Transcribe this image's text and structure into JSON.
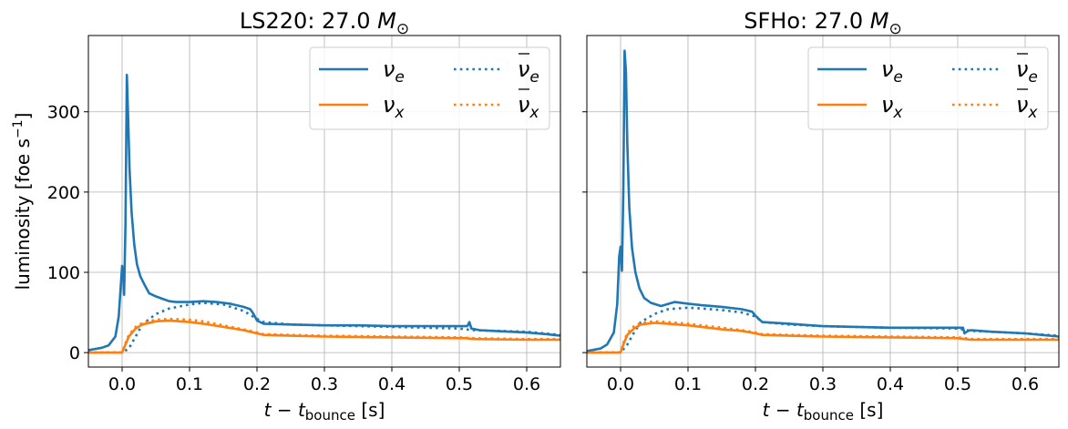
{
  "chart_data": [
    {
      "type": "line",
      "title": "LS220: 27.0 M⊙",
      "title_text": "LS220: 27.0",
      "title_symbol": "M",
      "title_subscript": "⊙",
      "xlabel_main": "t − t",
      "xlabel_sub": "bounce",
      "xlabel_unit": "[s]",
      "ylabel": "luminosity [foe s⁻¹]",
      "ylabel_text": "luminosity [foe s",
      "ylabel_sup": "−1",
      "ylabel_close": "]",
      "xlim": [
        -0.05,
        0.65
      ],
      "ylim": [
        -18,
        395
      ],
      "xticks": [
        0.0,
        0.1,
        0.2,
        0.3,
        0.4,
        0.5,
        0.6
      ],
      "xtick_labels": [
        "0.0",
        "0.1",
        "0.2",
        "0.3",
        "0.4",
        "0.5",
        "0.6"
      ],
      "yticks": [
        0,
        100,
        200,
        300
      ],
      "ytick_labels": [
        "0",
        "100",
        "200",
        "300"
      ],
      "grid": true,
      "legend_position": "top-right",
      "series": [
        {
          "name": "νe",
          "base": "ν",
          "sub": "e",
          "bar": false,
          "color": "#1f77b4",
          "dash": "solid",
          "points": [
            [
              -0.05,
              3
            ],
            [
              -0.03,
              6
            ],
            [
              -0.02,
              9
            ],
            [
              -0.01,
              20
            ],
            [
              -0.005,
              45
            ],
            [
              0.0,
              108
            ],
            [
              0.002,
              95
            ],
            [
              0.003,
              72
            ],
            [
              0.005,
              160
            ],
            [
              0.007,
              346
            ],
            [
              0.009,
              290
            ],
            [
              0.011,
              230
            ],
            [
              0.014,
              175
            ],
            [
              0.018,
              135
            ],
            [
              0.022,
              110
            ],
            [
              0.027,
              95
            ],
            [
              0.033,
              85
            ],
            [
              0.04,
              74
            ],
            [
              0.05,
              70
            ],
            [
              0.06,
              67
            ],
            [
              0.07,
              64
            ],
            [
              0.08,
              63
            ],
            [
              0.1,
              63
            ],
            [
              0.12,
              64
            ],
            [
              0.14,
              63
            ],
            [
              0.16,
              61
            ],
            [
              0.18,
              57
            ],
            [
              0.19,
              54
            ],
            [
              0.195,
              48
            ],
            [
              0.2,
              40
            ],
            [
              0.21,
              36
            ],
            [
              0.25,
              35
            ],
            [
              0.3,
              34
            ],
            [
              0.35,
              34
            ],
            [
              0.4,
              33
            ],
            [
              0.45,
              33
            ],
            [
              0.5,
              33
            ],
            [
              0.512,
              33
            ],
            [
              0.515,
              38
            ],
            [
              0.518,
              30
            ],
            [
              0.53,
              28
            ],
            [
              0.55,
              27
            ],
            [
              0.6,
              25
            ],
            [
              0.63,
              23
            ],
            [
              0.65,
              21
            ]
          ]
        },
        {
          "name": "νx",
          "base": "ν",
          "sub": "x",
          "bar": false,
          "color": "#ff7f0e",
          "dash": "solid",
          "points": [
            [
              -0.05,
              0
            ],
            [
              0.0,
              0
            ],
            [
              0.005,
              10
            ],
            [
              0.01,
              20
            ],
            [
              0.02,
              30
            ],
            [
              0.03,
              35
            ],
            [
              0.05,
              39
            ],
            [
              0.07,
              40
            ],
            [
              0.1,
              38
            ],
            [
              0.12,
              36
            ],
            [
              0.15,
              32
            ],
            [
              0.18,
              28
            ],
            [
              0.2,
              24
            ],
            [
              0.21,
              22
            ],
            [
              0.25,
              21
            ],
            [
              0.3,
              20
            ],
            [
              0.4,
              19
            ],
            [
              0.5,
              18
            ],
            [
              0.51,
              18
            ],
            [
              0.52,
              17
            ],
            [
              0.6,
              16
            ],
            [
              0.65,
              16
            ]
          ]
        },
        {
          "name": "ν̅e",
          "base": "ν",
          "sub": "e",
          "bar": true,
          "color": "#1f77b4",
          "dash": "dotted",
          "points": [
            [
              -0.05,
              0
            ],
            [
              0.0,
              0
            ],
            [
              0.01,
              5
            ],
            [
              0.02,
              20
            ],
            [
              0.03,
              35
            ],
            [
              0.05,
              48
            ],
            [
              0.07,
              55
            ],
            [
              0.1,
              60
            ],
            [
              0.12,
              62
            ],
            [
              0.15,
              60
            ],
            [
              0.18,
              52
            ],
            [
              0.2,
              42
            ],
            [
              0.21,
              38
            ],
            [
              0.25,
              35
            ],
            [
              0.3,
              34
            ],
            [
              0.4,
              32
            ],
            [
              0.5,
              30
            ],
            [
              0.52,
              28
            ],
            [
              0.6,
              26
            ],
            [
              0.65,
              22
            ]
          ]
        },
        {
          "name": "ν̅x",
          "base": "ν",
          "sub": "x",
          "bar": true,
          "color": "#ff7f0e",
          "dash": "dotted",
          "points": [
            [
              -0.05,
              0
            ],
            [
              0.0,
              0
            ],
            [
              0.005,
              12
            ],
            [
              0.01,
              22
            ],
            [
              0.02,
              32
            ],
            [
              0.03,
              37
            ],
            [
              0.05,
              41
            ],
            [
              0.07,
              42
            ],
            [
              0.1,
              41
            ],
            [
              0.12,
              39
            ],
            [
              0.15,
              34
            ],
            [
              0.18,
              29
            ],
            [
              0.2,
              25
            ],
            [
              0.21,
              23
            ],
            [
              0.25,
              22
            ],
            [
              0.3,
              21
            ],
            [
              0.4,
              20
            ],
            [
              0.5,
              19
            ],
            [
              0.52,
              18
            ],
            [
              0.6,
              17
            ],
            [
              0.65,
              17
            ]
          ]
        }
      ]
    },
    {
      "type": "line",
      "title": "SFHo: 27.0 M⊙",
      "title_text": "SFHo: 27.0",
      "title_symbol": "M",
      "title_subscript": "⊙",
      "xlabel_main": "t − t",
      "xlabel_sub": "bounce",
      "xlabel_unit": "[s]",
      "xlim": [
        -0.05,
        0.65
      ],
      "ylim": [
        -18,
        395
      ],
      "xticks": [
        0.0,
        0.1,
        0.2,
        0.3,
        0.4,
        0.5,
        0.6
      ],
      "xtick_labels": [
        "0.0",
        "0.1",
        "0.2",
        "0.3",
        "0.4",
        "0.5",
        "0.6"
      ],
      "yticks": [
        0,
        100,
        200,
        300
      ],
      "grid": true,
      "legend_position": "top-right",
      "series": [
        {
          "name": "νe",
          "base": "ν",
          "sub": "e",
          "bar": false,
          "color": "#1f77b4",
          "dash": "solid",
          "points": [
            [
              -0.05,
              2
            ],
            [
              -0.03,
              5
            ],
            [
              -0.02,
              10
            ],
            [
              -0.01,
              25
            ],
            [
              -0.005,
              60
            ],
            [
              -0.002,
              120
            ],
            [
              0.0,
              132
            ],
            [
              0.002,
              102
            ],
            [
              0.004,
              200
            ],
            [
              0.006,
              376
            ],
            [
              0.008,
              350
            ],
            [
              0.01,
              260
            ],
            [
              0.013,
              180
            ],
            [
              0.017,
              130
            ],
            [
              0.022,
              100
            ],
            [
              0.028,
              80
            ],
            [
              0.035,
              68
            ],
            [
              0.045,
              62
            ],
            [
              0.06,
              58
            ],
            [
              0.08,
              63
            ],
            [
              0.1,
              61
            ],
            [
              0.12,
              59
            ],
            [
              0.15,
              57
            ],
            [
              0.18,
              54
            ],
            [
              0.195,
              51
            ],
            [
              0.2,
              46
            ],
            [
              0.21,
              38
            ],
            [
              0.25,
              36
            ],
            [
              0.3,
              33
            ],
            [
              0.35,
              32
            ],
            [
              0.4,
              31
            ],
            [
              0.45,
              31
            ],
            [
              0.5,
              31
            ],
            [
              0.508,
              31
            ],
            [
              0.51,
              24
            ],
            [
              0.515,
              27
            ],
            [
              0.52,
              28
            ],
            [
              0.55,
              26
            ],
            [
              0.6,
              24
            ],
            [
              0.65,
              20
            ]
          ]
        },
        {
          "name": "νx",
          "base": "ν",
          "sub": "x",
          "bar": false,
          "color": "#ff7f0e",
          "dash": "solid",
          "points": [
            [
              -0.05,
              0
            ],
            [
              0.0,
              0
            ],
            [
              0.005,
              12
            ],
            [
              0.01,
              22
            ],
            [
              0.02,
              30
            ],
            [
              0.03,
              35
            ],
            [
              0.05,
              37
            ],
            [
              0.07,
              36
            ],
            [
              0.1,
              34
            ],
            [
              0.12,
              32
            ],
            [
              0.15,
              29
            ],
            [
              0.18,
              27
            ],
            [
              0.2,
              24
            ],
            [
              0.21,
              22
            ],
            [
              0.25,
              21
            ],
            [
              0.3,
              20
            ],
            [
              0.4,
              19
            ],
            [
              0.5,
              18
            ],
            [
              0.51,
              17
            ],
            [
              0.52,
              16
            ],
            [
              0.6,
              16
            ],
            [
              0.65,
              16
            ]
          ]
        },
        {
          "name": "ν̅e",
          "base": "ν",
          "sub": "e",
          "bar": true,
          "color": "#1f77b4",
          "dash": "dotted",
          "points": [
            [
              -0.05,
              0
            ],
            [
              0.0,
              0
            ],
            [
              0.01,
              10
            ],
            [
              0.02,
              25
            ],
            [
              0.03,
              38
            ],
            [
              0.05,
              48
            ],
            [
              0.07,
              54
            ],
            [
              0.1,
              56
            ],
            [
              0.12,
              55
            ],
            [
              0.15,
              53
            ],
            [
              0.18,
              50
            ],
            [
              0.2,
              45
            ],
            [
              0.21,
              38
            ],
            [
              0.25,
              35
            ],
            [
              0.3,
              33
            ],
            [
              0.4,
              31
            ],
            [
              0.5,
              30
            ],
            [
              0.52,
              27
            ],
            [
              0.6,
              24
            ],
            [
              0.65,
              21
            ]
          ]
        },
        {
          "name": "ν̅x",
          "base": "ν",
          "sub": "x",
          "bar": true,
          "color": "#ff7f0e",
          "dash": "dotted",
          "points": [
            [
              -0.05,
              0
            ],
            [
              0.0,
              0
            ],
            [
              0.005,
              14
            ],
            [
              0.01,
              24
            ],
            [
              0.02,
              33
            ],
            [
              0.03,
              37
            ],
            [
              0.05,
              39
            ],
            [
              0.07,
              38
            ],
            [
              0.1,
              36
            ],
            [
              0.12,
              34
            ],
            [
              0.15,
              31
            ],
            [
              0.18,
              28
            ],
            [
              0.2,
              25
            ],
            [
              0.21,
              23
            ],
            [
              0.25,
              22
            ],
            [
              0.3,
              21
            ],
            [
              0.4,
              20
            ],
            [
              0.5,
              19
            ],
            [
              0.52,
              17
            ],
            [
              0.6,
              17
            ],
            [
              0.65,
              17
            ]
          ]
        }
      ]
    }
  ]
}
